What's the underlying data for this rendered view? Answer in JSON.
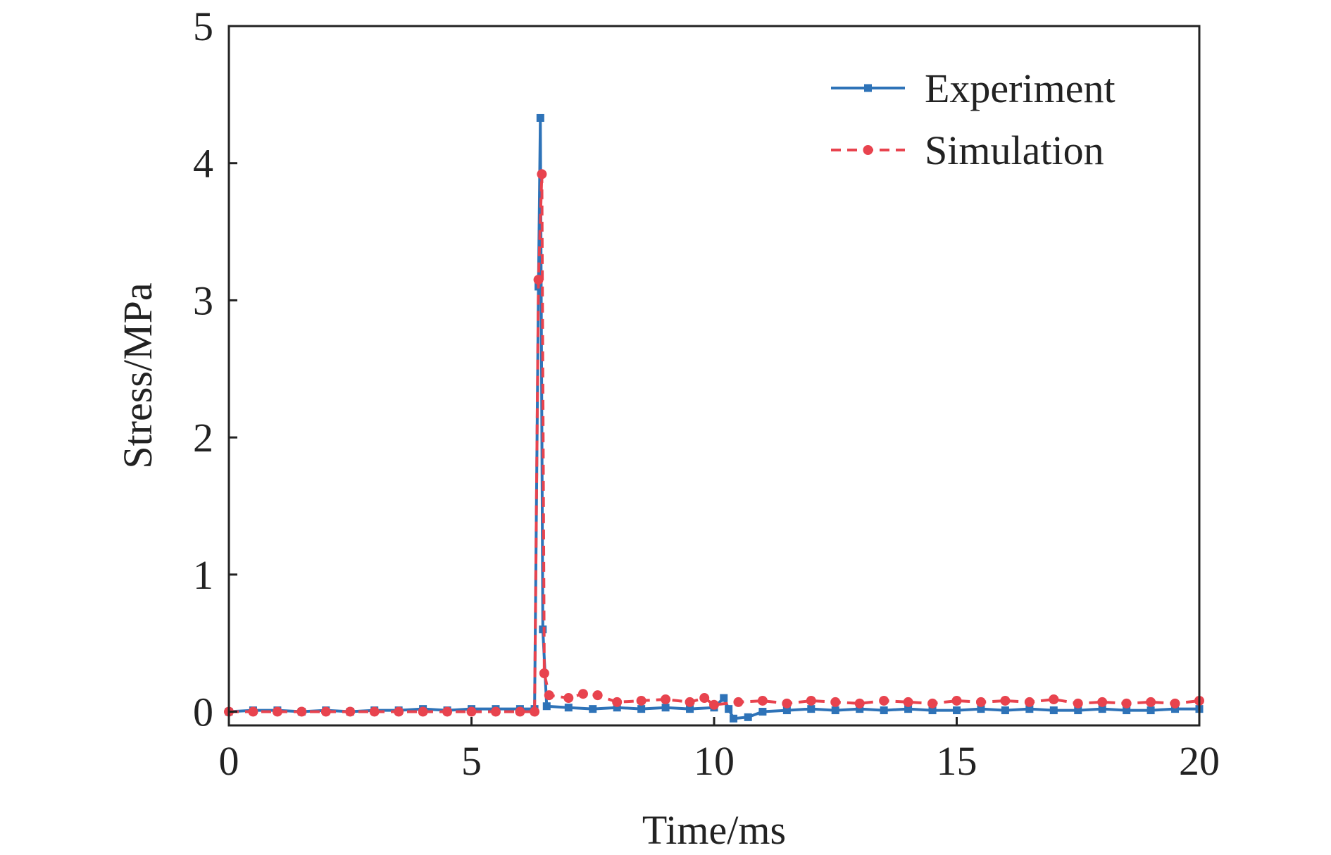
{
  "chart_data": {
    "type": "line",
    "xlabel": "Time/ms",
    "ylabel": "Stress/MPa",
    "xlim": [
      0,
      20
    ],
    "ylim": [
      -0.1,
      5
    ],
    "x_ticks": [
      0,
      5,
      10,
      15,
      20
    ],
    "y_ticks": [
      0,
      1,
      2,
      3,
      4,
      5
    ],
    "x_tick_labels": [
      "0",
      "5",
      "10",
      "15",
      "20"
    ],
    "y_tick_labels": [
      "0",
      "1",
      "2",
      "3",
      "4",
      "5"
    ],
    "grid": false,
    "legend_position": "top-right",
    "series": [
      {
        "name": "Experiment",
        "color": "#2e73b8",
        "line": "solid",
        "marker": "square",
        "points": [
          [
            0,
            0.0
          ],
          [
            0.5,
            0.01
          ],
          [
            1.0,
            0.01
          ],
          [
            1.5,
            0.0
          ],
          [
            2.0,
            0.01
          ],
          [
            2.5,
            0.0
          ],
          [
            3.0,
            0.01
          ],
          [
            3.5,
            0.01
          ],
          [
            4.0,
            0.02
          ],
          [
            4.5,
            0.01
          ],
          [
            5.0,
            0.02
          ],
          [
            5.5,
            0.02
          ],
          [
            6.0,
            0.02
          ],
          [
            6.3,
            0.02
          ],
          [
            6.38,
            3.1
          ],
          [
            6.42,
            4.33
          ],
          [
            6.47,
            0.6
          ],
          [
            6.55,
            0.04
          ],
          [
            7.0,
            0.03
          ],
          [
            7.5,
            0.02
          ],
          [
            8.0,
            0.03
          ],
          [
            8.5,
            0.02
          ],
          [
            9.0,
            0.03
          ],
          [
            9.5,
            0.02
          ],
          [
            10.0,
            0.03
          ],
          [
            10.2,
            0.1
          ],
          [
            10.3,
            0.02
          ],
          [
            10.4,
            -0.05
          ],
          [
            10.7,
            -0.04
          ],
          [
            11.0,
            0.0
          ],
          [
            11.5,
            0.01
          ],
          [
            12.0,
            0.02
          ],
          [
            12.5,
            0.01
          ],
          [
            13.0,
            0.02
          ],
          [
            13.5,
            0.01
          ],
          [
            14.0,
            0.02
          ],
          [
            14.5,
            0.01
          ],
          [
            15.0,
            0.01
          ],
          [
            15.5,
            0.02
          ],
          [
            16.0,
            0.01
          ],
          [
            16.5,
            0.02
          ],
          [
            17.0,
            0.01
          ],
          [
            17.5,
            0.01
          ],
          [
            18.0,
            0.02
          ],
          [
            18.5,
            0.01
          ],
          [
            19.0,
            0.01
          ],
          [
            19.5,
            0.02
          ],
          [
            20.0,
            0.02
          ]
        ]
      },
      {
        "name": "Simulation",
        "color": "#e8434e",
        "line": "dashed",
        "marker": "circle",
        "points": [
          [
            0,
            0.0
          ],
          [
            0.5,
            0.0
          ],
          [
            1.0,
            0.0
          ],
          [
            1.5,
            0.0
          ],
          [
            2.0,
            0.0
          ],
          [
            2.5,
            0.0
          ],
          [
            3.0,
            0.0
          ],
          [
            3.5,
            0.0
          ],
          [
            4.0,
            0.0
          ],
          [
            4.5,
            0.0
          ],
          [
            5.0,
            0.0
          ],
          [
            5.5,
            0.0
          ],
          [
            6.0,
            0.0
          ],
          [
            6.3,
            0.0
          ],
          [
            6.38,
            3.15
          ],
          [
            6.45,
            3.92
          ],
          [
            6.5,
            0.28
          ],
          [
            6.6,
            0.12
          ],
          [
            7.0,
            0.1
          ],
          [
            7.3,
            0.13
          ],
          [
            7.6,
            0.12
          ],
          [
            8.0,
            0.07
          ],
          [
            8.5,
            0.08
          ],
          [
            9.0,
            0.09
          ],
          [
            9.5,
            0.07
          ],
          [
            9.8,
            0.1
          ],
          [
            10.0,
            0.05
          ],
          [
            10.5,
            0.07
          ],
          [
            11.0,
            0.08
          ],
          [
            11.5,
            0.06
          ],
          [
            12.0,
            0.08
          ],
          [
            12.5,
            0.07
          ],
          [
            13.0,
            0.06
          ],
          [
            13.5,
            0.08
          ],
          [
            14.0,
            0.07
          ],
          [
            14.5,
            0.06
          ],
          [
            15.0,
            0.08
          ],
          [
            15.5,
            0.07
          ],
          [
            16.0,
            0.08
          ],
          [
            16.5,
            0.07
          ],
          [
            17.0,
            0.09
          ],
          [
            17.5,
            0.06
          ],
          [
            18.0,
            0.07
          ],
          [
            18.5,
            0.06
          ],
          [
            19.0,
            0.07
          ],
          [
            19.5,
            0.06
          ],
          [
            20.0,
            0.08
          ]
        ]
      }
    ]
  }
}
